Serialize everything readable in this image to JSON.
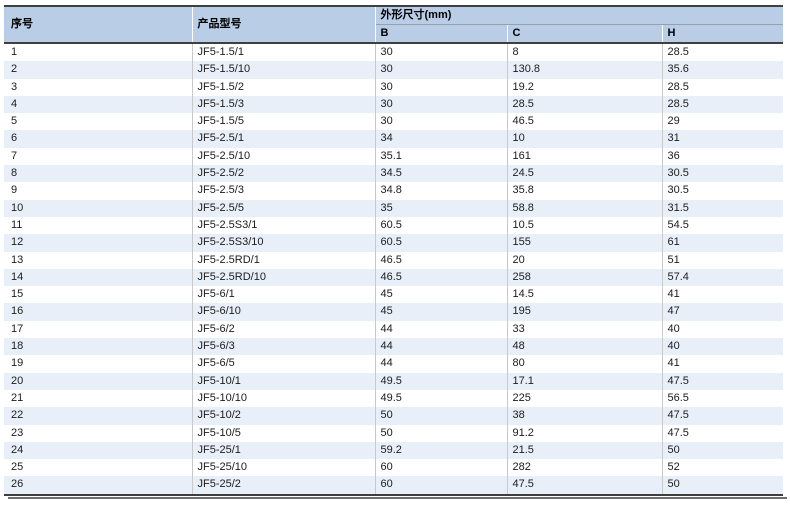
{
  "table": {
    "header": {
      "index": "序号",
      "model": "产品型号",
      "dims_group": "外形尺寸(mm)",
      "b": "B",
      "c": "C",
      "h": "H"
    },
    "column_keys": [
      "index",
      "model",
      "b",
      "c",
      "h"
    ],
    "rows": [
      [
        "1",
        "JF5-1.5/1",
        "30",
        "8",
        "28.5"
      ],
      [
        "2",
        "JF5-1.5/10",
        "30",
        "130.8",
        "35.6"
      ],
      [
        "3",
        "JF5-1.5/2",
        "30",
        "19.2",
        "28.5"
      ],
      [
        "4",
        "JF5-1.5/3",
        "30",
        "28.5",
        "28.5"
      ],
      [
        "5",
        "JF5-1.5/5",
        "30",
        "46.5",
        "29"
      ],
      [
        "6",
        "JF5-2.5/1",
        "34",
        "10",
        "31"
      ],
      [
        "7",
        "JF5-2.5/10",
        "35.1",
        "161",
        "36"
      ],
      [
        "8",
        "JF5-2.5/2",
        "34.5",
        "24.5",
        "30.5"
      ],
      [
        "9",
        "JF5-2.5/3",
        "34.8",
        "35.8",
        "30.5"
      ],
      [
        "10",
        "JF5-2.5/5",
        "35",
        "58.8",
        "31.5"
      ],
      [
        "11",
        "JF5-2.5S3/1",
        "60.5",
        "10.5",
        "54.5"
      ],
      [
        "12",
        "JF5-2.5S3/10",
        "60.5",
        "155",
        "61"
      ],
      [
        "13",
        "JF5-2.5RD/1",
        "46.5",
        "20",
        "51"
      ],
      [
        "14",
        "JF5-2.5RD/10",
        "46.5",
        "258",
        "57.4"
      ],
      [
        "15",
        "JF5-6/1",
        "45",
        "14.5",
        "41"
      ],
      [
        "16",
        "JF5-6/10",
        "45",
        "195",
        "47"
      ],
      [
        "17",
        "JF5-6/2",
        "44",
        "33",
        "40"
      ],
      [
        "18",
        "JF5-6/3",
        "44",
        "48",
        "40"
      ],
      [
        "19",
        "JF5-6/5",
        "44",
        "80",
        "41"
      ],
      [
        "20",
        "JF5-10/1",
        "49.5",
        "17.1",
        "47.5"
      ],
      [
        "21",
        "JF5-10/10",
        "49.5",
        "225",
        "56.5"
      ],
      [
        "22",
        "JF5-10/2",
        "50",
        "38",
        "47.5"
      ],
      [
        "23",
        "JF5-10/5",
        "50",
        "91.2",
        "47.5"
      ],
      [
        "24",
        "JF5-25/1",
        "59.2",
        "21.5",
        "50"
      ],
      [
        "25",
        "JF5-25/10",
        "60",
        "282",
        "52"
      ],
      [
        "26",
        "JF5-25/2",
        "60",
        "47.5",
        "50"
      ]
    ]
  },
  "colors": {
    "header_bg": "#b9cde7",
    "row_alt_bg": "#e9eff8",
    "border_dark": "#3f3f3f",
    "column_divider": "#c9c9c9",
    "header_inner_line": "#94a0ac"
  }
}
